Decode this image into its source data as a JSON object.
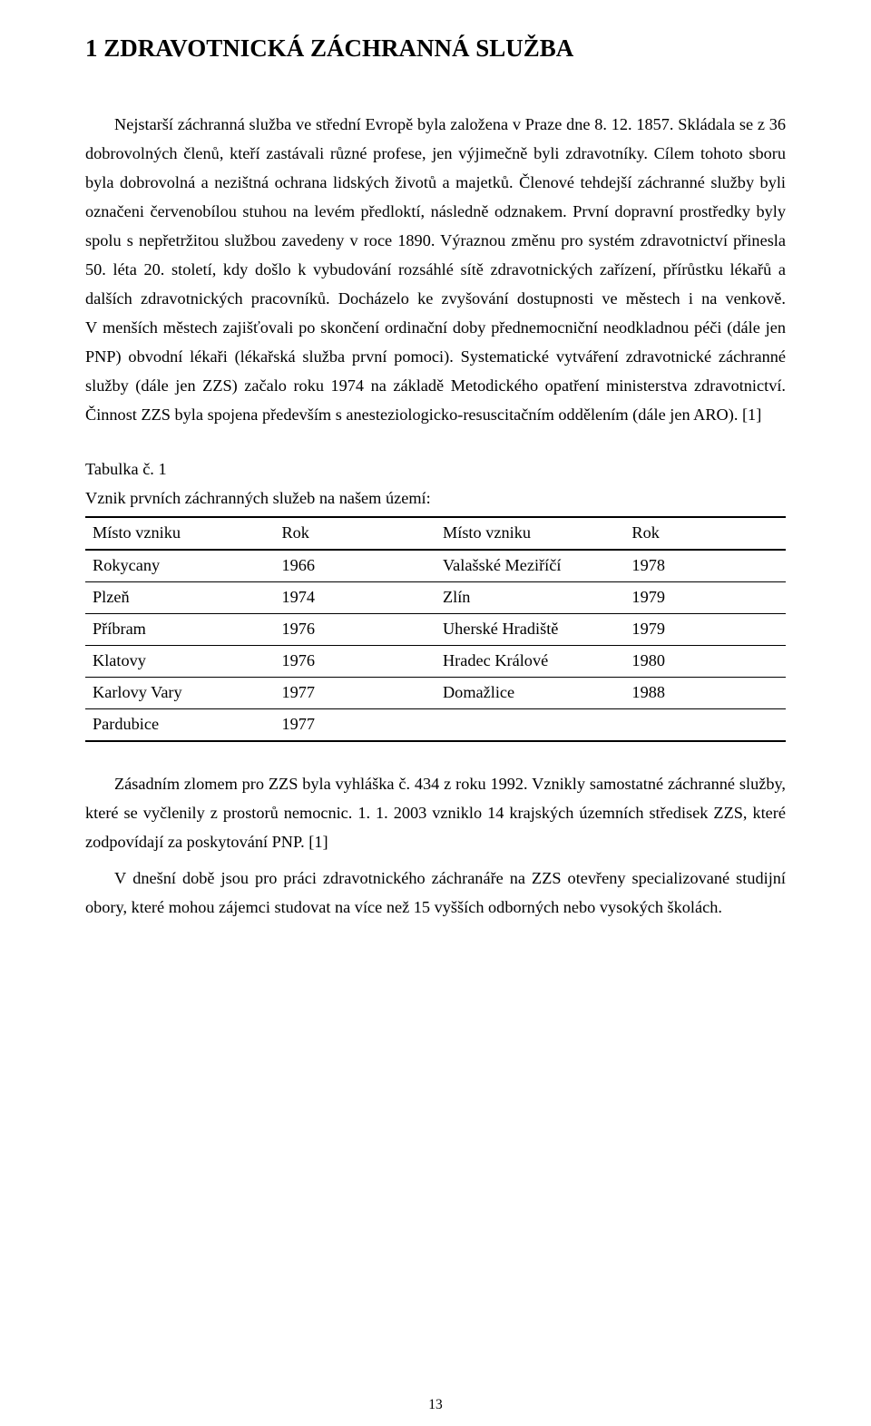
{
  "heading": "1 ZDRAVOTNICKÁ ZÁCHRANNÁ SLUŽBA",
  "para1": "Nejstarší záchranná služba ve střední Evropě byla založena v Praze dne 8. 12. 1857. Skládala se z 36 dobrovolných členů, kteří zastávali různé profese, jen výjimečně byli zdravotníky. Cílem tohoto sboru byla dobrovolná a nezištná ochrana lidských životů a majetků. Členové tehdejší záchranné služby byli označeni červenobílou stuhou na levém předloktí, následně odznakem. První dopravní prostředky byly spolu s nepřetržitou službou zavedeny v roce 1890. Výraznou změnu pro systém zdravotnictví přinesla 50. léta 20. století, kdy došlo k vybudování rozsáhlé sítě zdravotnických zařízení, přírůstku lékařů a dalších zdravotnických pracovníků. Docházelo ke zvyšování dostupnosti ve městech i na venkově. V menších městech zajišťovali po skončení ordinační doby přednemocniční neodkladnou péči (dále jen PNP) obvodní lékaři (lékařská služba první pomoci). Systematické vytváření zdravotnické záchranné služby (dále jen ZZS) začalo roku 1974 na základě Metodického opatření ministerstva zdravotnictví. Činnost ZZS byla spojena především s anesteziologicko-resuscitačním oddělením (dále jen ARO). [1]",
  "table": {
    "label": "Tabulka č. 1",
    "caption": "Vznik prvních záchranných služeb na našem území:",
    "columns": [
      "Místo vzniku",
      "Rok",
      "Místo vzniku",
      "Rok"
    ],
    "rows": [
      [
        "Rokycany",
        "1966",
        "Valašské Meziříčí",
        "1978"
      ],
      [
        "Plzeň",
        "1974",
        "Zlín",
        "1979"
      ],
      [
        "Příbram",
        "1976",
        "Uherské Hradiště",
        "1979"
      ],
      [
        "Klatovy",
        "1976",
        "Hradec Králové",
        "1980"
      ],
      [
        "Karlovy Vary",
        "1977",
        "Domažlice",
        "1988"
      ],
      [
        "Pardubice",
        "1977",
        "",
        ""
      ]
    ],
    "col_widths": [
      "27%",
      "23%",
      "27%",
      "23%"
    ]
  },
  "para2": "Zásadním zlomem pro ZZS byla vyhláška č. 434 z roku 1992. Vznikly samostatné záchranné služby, které se vyčlenily z prostorů nemocnic. 1. 1. 2003 vzniklo 14 krajských územních středisek ZZS, které zodpovídají za poskytování PNP. [1]",
  "para3": "V dnešní době jsou pro práci zdravotnického záchranáře na ZZS otevřeny specializované studijní obory, které mohou zájemci studovat na více než 15 vyšších odborných nebo vysokých školách.",
  "page_number": "13",
  "colors": {
    "text": "#000000",
    "background": "#ffffff",
    "border": "#000000"
  }
}
